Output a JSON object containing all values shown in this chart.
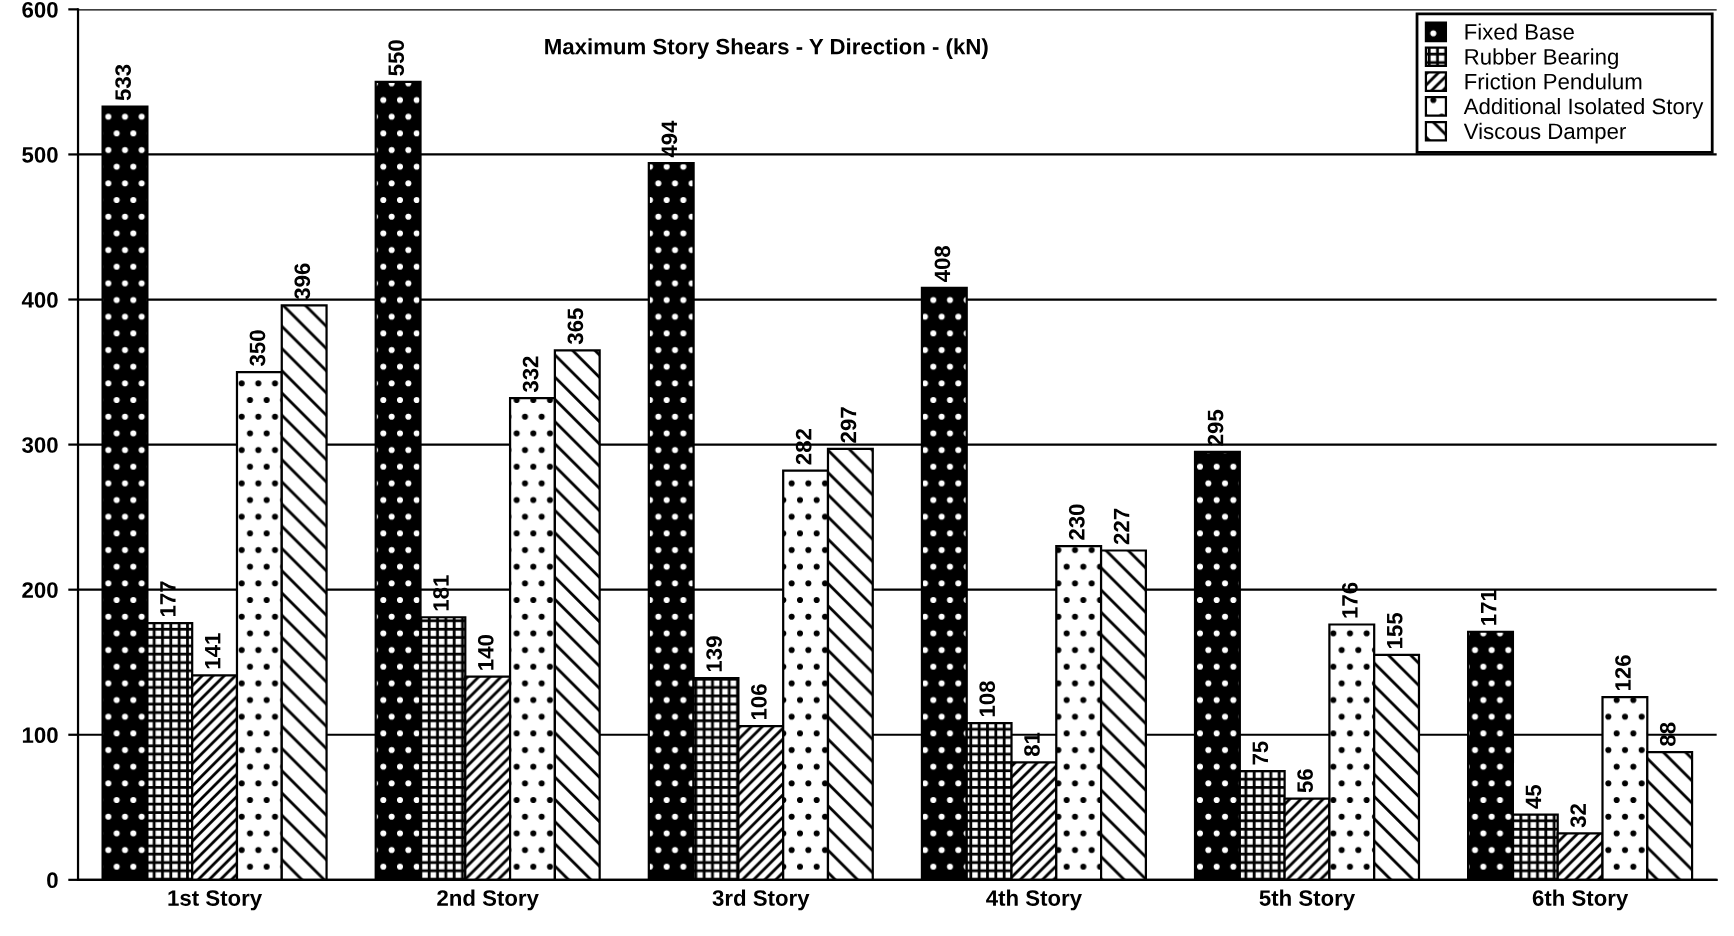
{
  "chart_data": {
    "type": "bar",
    "title": "Maximum Story Shears - Y Direction - (kN)",
    "categories": [
      "1st Story",
      "2nd Story",
      "3rd Story",
      "4th Story",
      "5th Story",
      "6th Story"
    ],
    "series": [
      {
        "name": "Fixed Base",
        "color": "#000000",
        "values": [
          533,
          550,
          494,
          408,
          295,
          171
        ]
      },
      {
        "name": "Rubber Bearing",
        "color": "#000000",
        "values": [
          177,
          181,
          139,
          108,
          75,
          45
        ]
      },
      {
        "name": "Friction Pendulum",
        "color": "#000000",
        "values": [
          141,
          140,
          106,
          81,
          56,
          32
        ]
      },
      {
        "name": "Additional Isolated Story",
        "color": "#000000",
        "values": [
          350,
          332,
          282,
          230,
          176,
          126
        ]
      },
      {
        "name": "Viscous Damper",
        "color": "#000000",
        "values": [
          396,
          365,
          297,
          227,
          155,
          88
        ]
      }
    ],
    "ylim": [
      0,
      600
    ],
    "yticks": [
      0,
      100,
      200,
      300,
      400,
      500,
      600
    ],
    "grid": "y",
    "legend": "top right",
    "data_labels": true
  }
}
